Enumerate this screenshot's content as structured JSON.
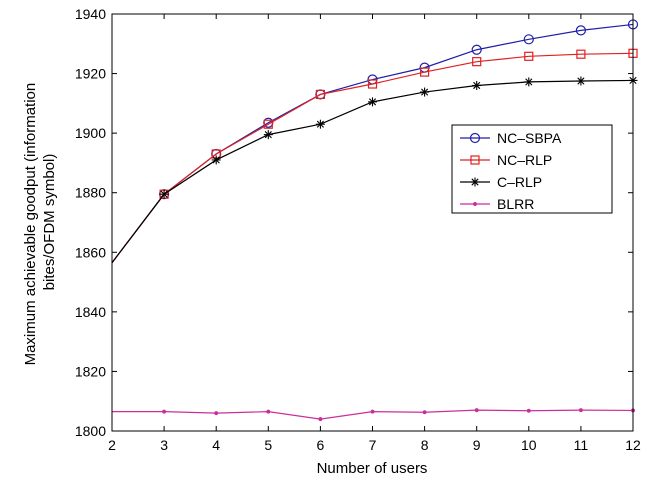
{
  "chart_data": {
    "type": "line",
    "title": "",
    "xlabel": "Number of users",
    "ylabel": "Maximum achievable goodput (information bites/OFDM symbol)",
    "ylabel_lines": [
      "Maximum achievable goodput (information",
      "bites/OFDM symbol)"
    ],
    "xlim": [
      2,
      12
    ],
    "ylim": [
      1800,
      1940
    ],
    "xticks": [
      2,
      3,
      4,
      5,
      6,
      7,
      8,
      9,
      10,
      11,
      12
    ],
    "yticks": [
      1800,
      1820,
      1840,
      1860,
      1880,
      1900,
      1920,
      1940
    ],
    "grid": false,
    "legend_position": "right",
    "series": [
      {
        "name": "NC–SBPA",
        "color": "#1f1fa8",
        "marker": "circle",
        "x": [
          2,
          3,
          4,
          5,
          6,
          7,
          8,
          9,
          10,
          11,
          12
        ],
        "values": [
          1856.5,
          1879.5,
          1893,
          1903.5,
          1913,
          1918,
          1922,
          1928,
          1931.5,
          1934.5,
          1936.5
        ]
      },
      {
        "name": "NC–RLP",
        "color": "#e02020",
        "marker": "square",
        "x": [
          2,
          3,
          4,
          5,
          6,
          7,
          8,
          9,
          10,
          11,
          12
        ],
        "values": [
          1856.5,
          1879.5,
          1893,
          1903,
          1913,
          1916.5,
          1920.5,
          1924,
          1925.8,
          1926.5,
          1926.8
        ]
      },
      {
        "name": "C–RLP",
        "color": "#000000",
        "marker": "asterisk",
        "x": [
          2,
          3,
          4,
          5,
          6,
          7,
          8,
          9,
          10,
          11,
          12
        ],
        "values": [
          1856.5,
          1879.5,
          1891,
          1899.5,
          1903,
          1910.5,
          1913.8,
          1916,
          1917.2,
          1917.5,
          1917.7
        ]
      },
      {
        "name": "BLRR",
        "color": "#cc2d9c",
        "marker": "dot",
        "x": [
          2,
          3,
          4,
          5,
          6,
          7,
          8,
          9,
          10,
          11,
          12
        ],
        "values": [
          1806.5,
          1806.5,
          1806,
          1806.5,
          1804,
          1806.5,
          1806.3,
          1807,
          1806.8,
          1807,
          1806.9
        ]
      }
    ]
  }
}
